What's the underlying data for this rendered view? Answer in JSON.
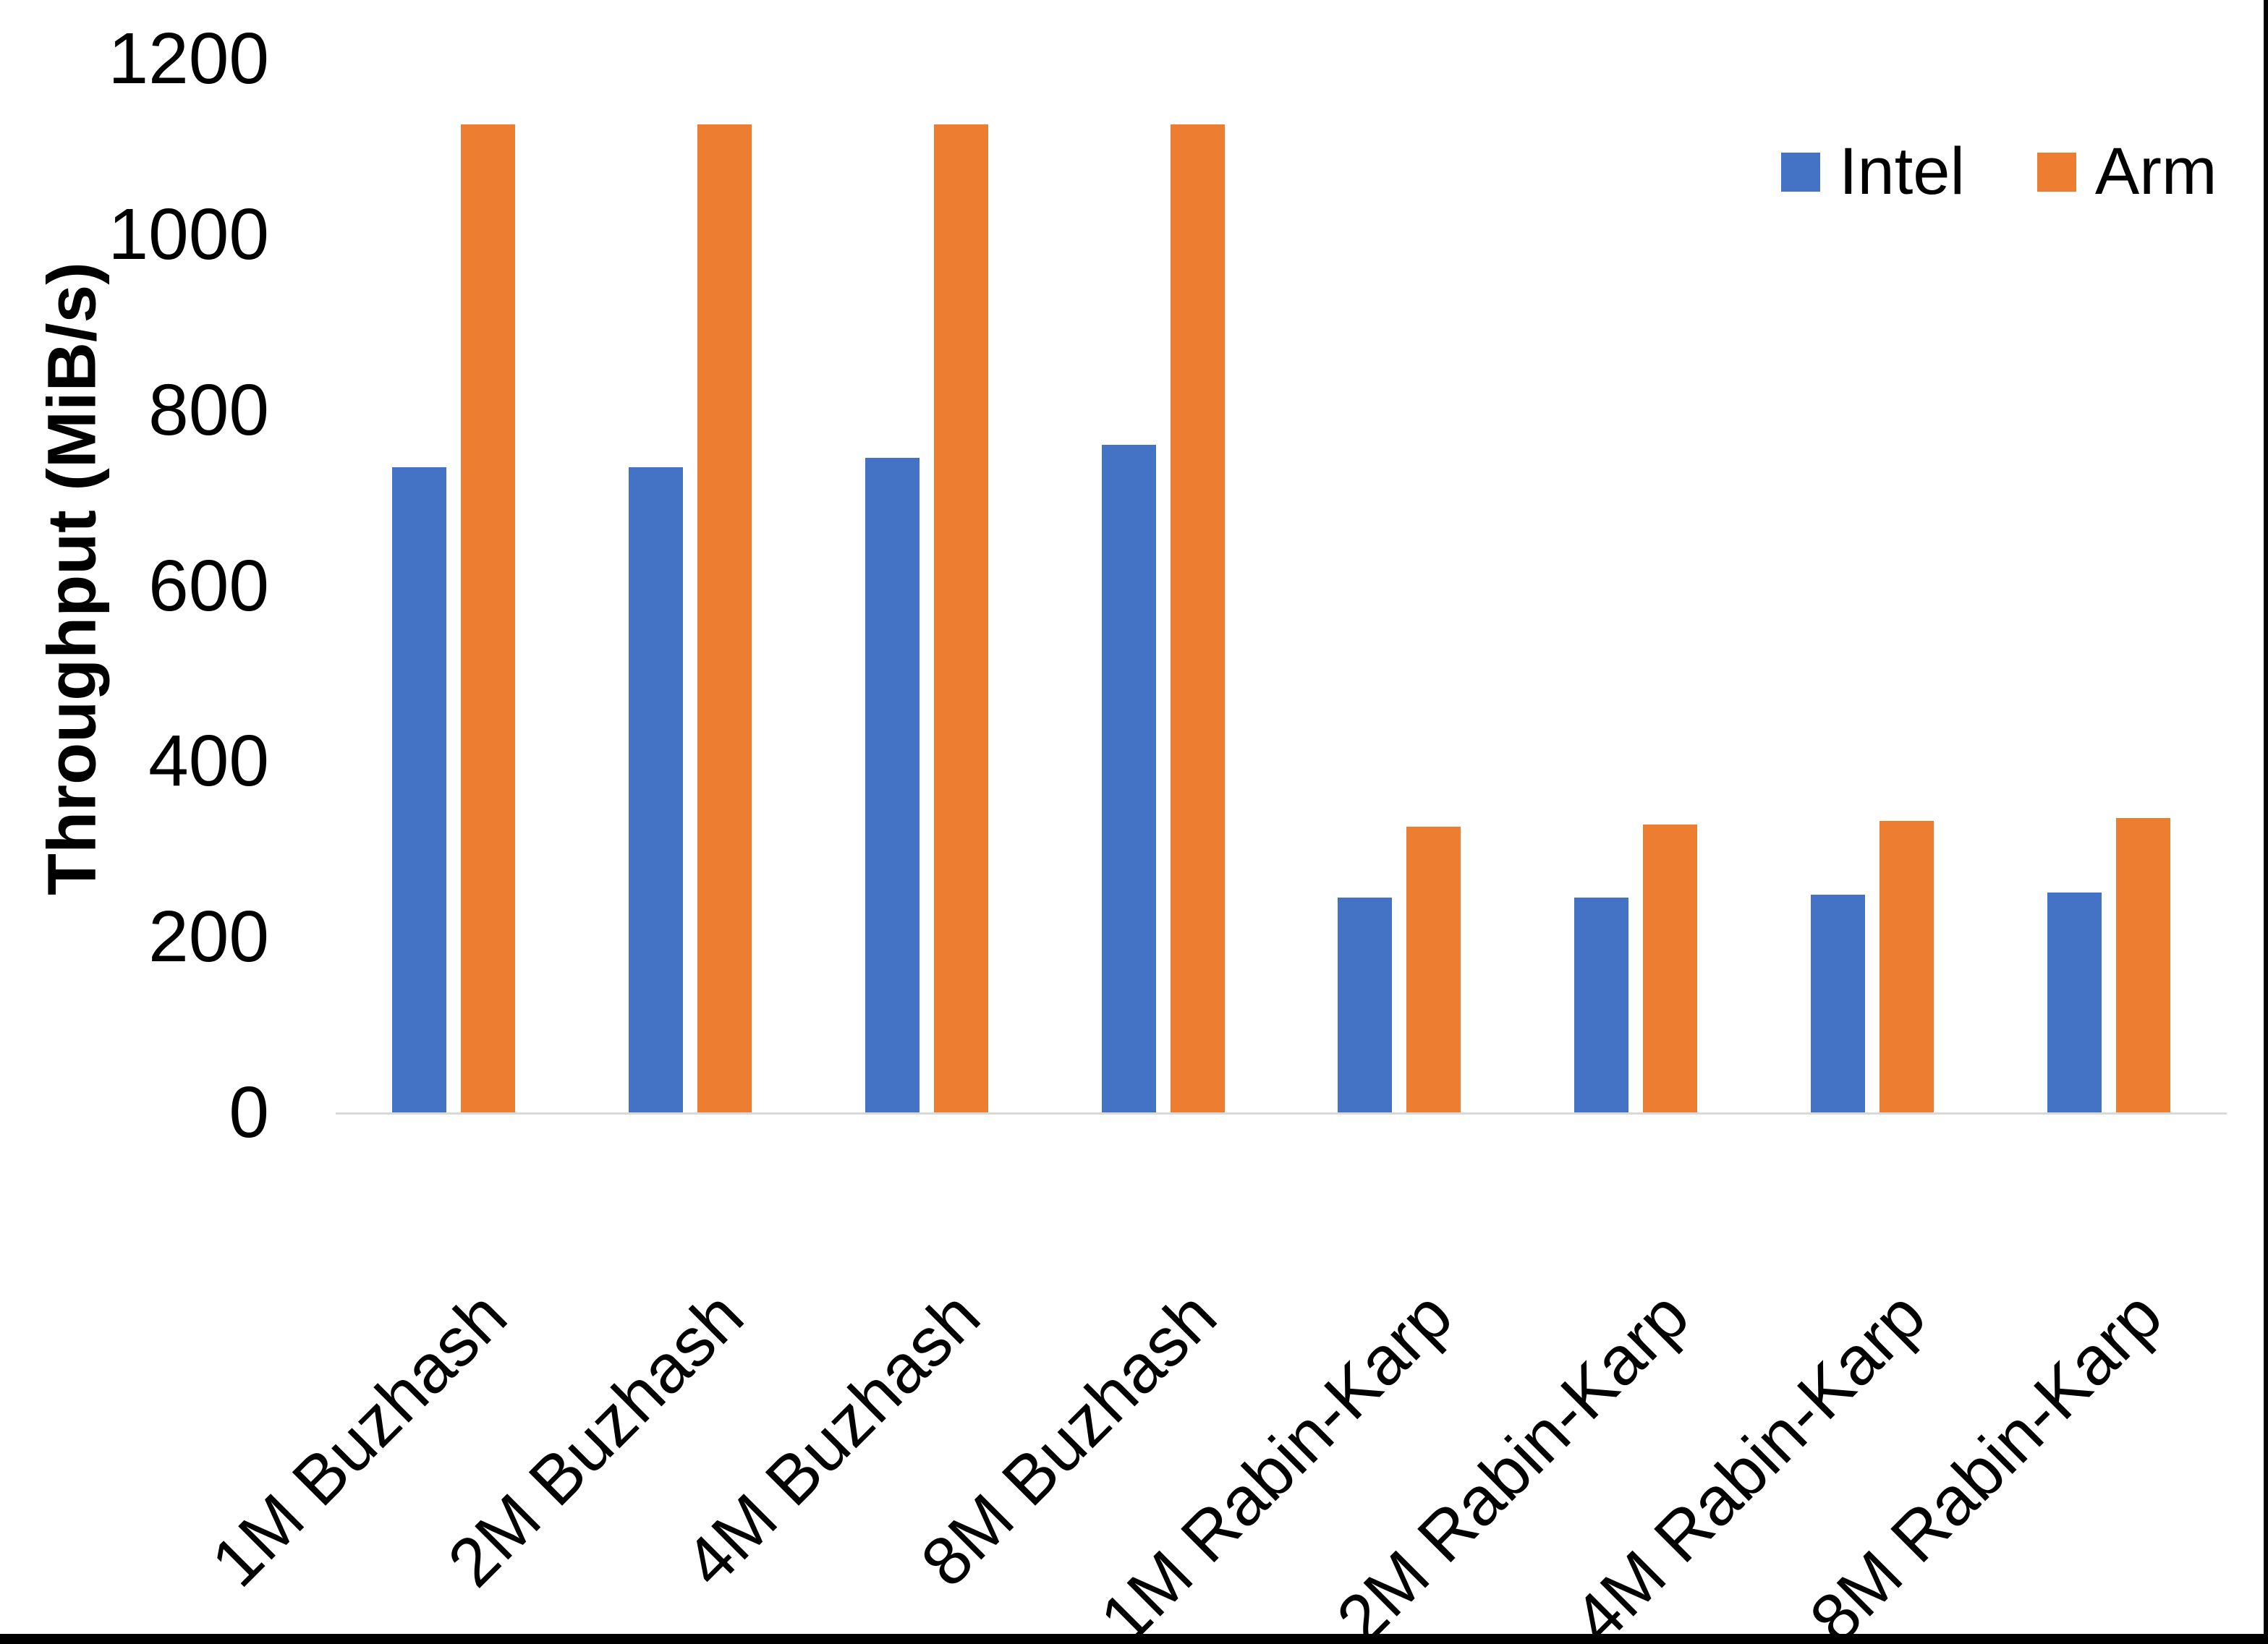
{
  "chart": {
    "y_axis_title": "Throughput (MiB/s)",
    "colors": {
      "intel": "#4472C4",
      "arm": "#ED7D31",
      "axis_line": "#D9D9D9",
      "border": "#000000",
      "text": "#000000",
      "background": "#FFFFFF"
    }
  },
  "chart_data": {
    "type": "bar",
    "title": "",
    "xlabel": "",
    "ylabel": "Throughput (MiB/s)",
    "categories": [
      "1M Buzhash",
      "2M Buzhash",
      "4M Buzhash",
      "8M Buzhash",
      "1M Rabin-Karp",
      "2M Rabin-Karp",
      "4M Rabin-Karp",
      "8M Rabin-Karp"
    ],
    "series": [
      {
        "name": "Intel",
        "color": "#4472C4",
        "values": [
          735,
          735,
          745,
          760,
          245,
          245,
          248,
          250
        ]
      },
      {
        "name": "Arm",
        "color": "#ED7D31",
        "values": [
          1125,
          1125,
          1125,
          1125,
          325,
          328,
          332,
          335
        ]
      }
    ],
    "ylim": [
      0,
      1200
    ],
    "yticks": [
      0,
      200,
      400,
      600,
      800,
      1000,
      1200
    ],
    "grid": false,
    "legend_position": "top-right"
  }
}
